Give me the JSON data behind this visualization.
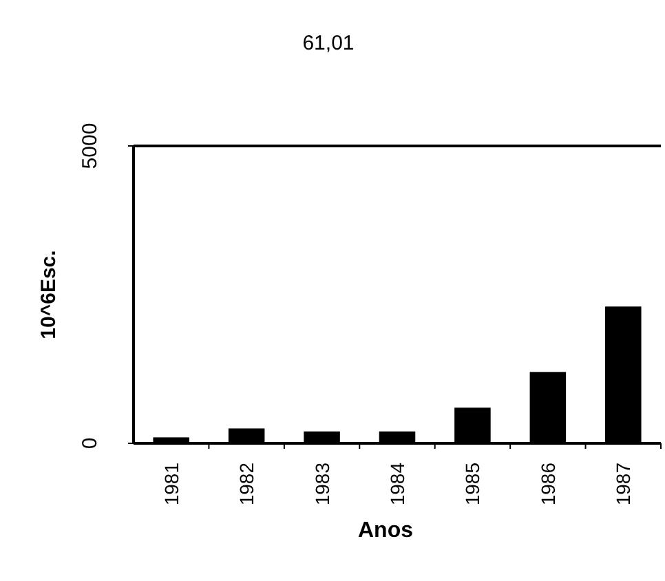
{
  "chart_data": {
    "type": "bar",
    "title": "61,01",
    "xlabel": "Anos",
    "ylabel": "10^6Esc.",
    "categories": [
      "1981",
      "1982",
      "1983",
      "1984",
      "1985",
      "1986",
      "1987"
    ],
    "values": [
      100,
      250,
      200,
      200,
      600,
      1200,
      2300
    ],
    "color": "#000000",
    "ylim": [
      0,
      5000
    ],
    "yticks": [
      0,
      5000
    ]
  }
}
